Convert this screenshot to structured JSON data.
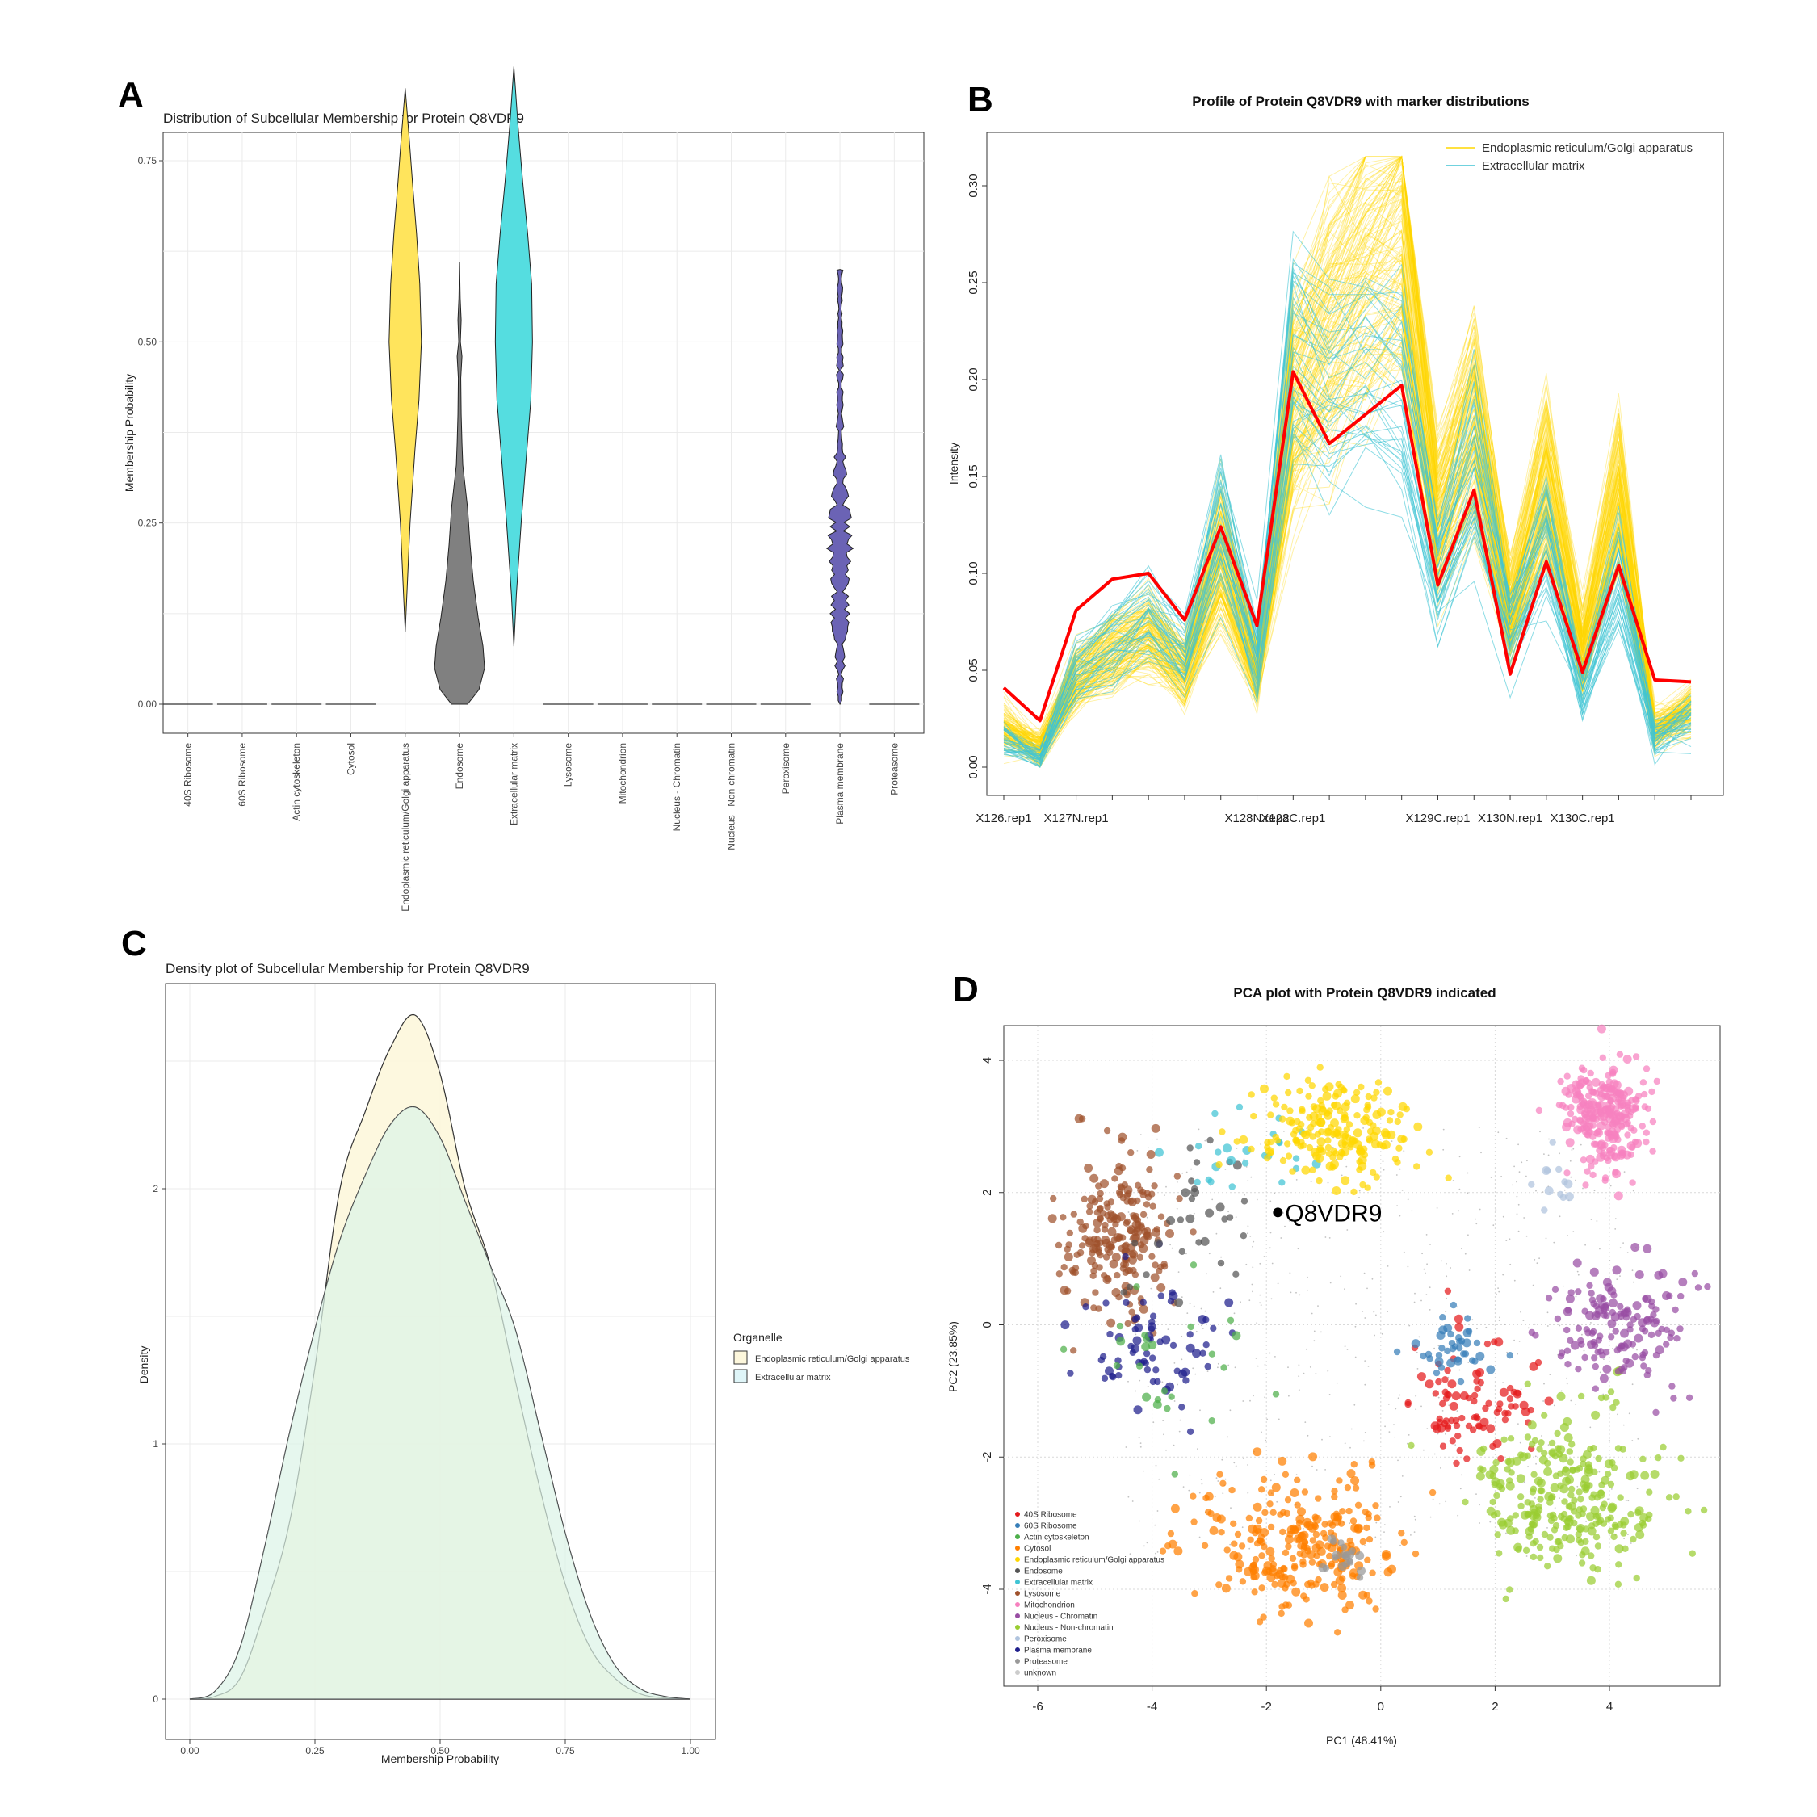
{
  "figure": {
    "letters": [
      "A",
      "B",
      "C",
      "D"
    ]
  },
  "chart_data": [
    {
      "type": "violin",
      "title": "Distribution of Subcellular Membership for Protein Q8VDR9",
      "xlabel": "",
      "ylabel": "Membership Probability",
      "ylim": [
        0,
        0.88
      ],
      "yticks": [
        "0.00",
        "0.25",
        "0.50",
        "0.75"
      ],
      "categories": [
        "40S Ribosome",
        "60S Ribosome",
        "Actin cytoskeleton",
        "Cytosol",
        "Endoplasmic reticulum/Golgi apparatus",
        "Endosome",
        "Extracellular matrix",
        "Lysosome",
        "Mitochondrion",
        "Nucleus - Chromatin",
        "Nucleus - Non-chromatin",
        "Peroxisome",
        "Plasma membrane",
        "Proteasome"
      ],
      "series": [
        {
          "category": "Endoplasmic reticulum/Golgi apparatus",
          "color": "#ffe45c",
          "min": 0.1,
          "max": 0.85,
          "mode": 0.5
        },
        {
          "category": "Endosome",
          "color": "#808080",
          "min": 0.0,
          "max": 0.61,
          "mode": 0.05
        },
        {
          "category": "Extracellular matrix",
          "color": "#55dde0",
          "min": 0.08,
          "max": 0.88,
          "mode": 0.5
        },
        {
          "category": "Plasma membrane",
          "color": "#6b63b5",
          "min": 0.0,
          "max": 0.6,
          "mode": 0.2
        }
      ],
      "grid": true
    },
    {
      "type": "line",
      "title": "Profile of Protein Q8VDR9 with marker distributions",
      "xlabel": "",
      "ylabel": "Intensity",
      "ylim": [
        0,
        0.32
      ],
      "yticks": [
        "0.00",
        "0.05",
        "0.10",
        "0.15",
        "0.20",
        "0.25",
        "0.30"
      ],
      "x": [
        "X126.rep1",
        "X126.rep2",
        "X127N.rep1",
        "X127N.rep2",
        "X127C.rep1",
        "X127C.rep2",
        "X128N.rep1",
        "X128N.rep2",
        "X128C.rep1",
        "X128C.rep2",
        "X129N.rep1",
        "X129N.rep2",
        "X129C.rep1",
        "X129C.rep2",
        "X130N.rep1",
        "X130N.rep2",
        "X130C.rep1",
        "X130C.rep2",
        "X131.rep1",
        "X131.rep2"
      ],
      "x_labels_shown": [
        "X126.rep1",
        "X127N.rep1",
        "X128N.rep2",
        "X128C.rep1",
        "X129C.rep1",
        "X130N.rep1",
        "X130C.rep1"
      ],
      "protein": {
        "name": "Q8VDR9",
        "color": "#ff0000",
        "values": [
          0.041,
          0.024,
          0.081,
          0.097,
          0.1,
          0.076,
          0.124,
          0.073,
          0.204,
          0.167,
          0.182,
          0.197,
          0.094,
          0.143,
          0.048,
          0.106,
          0.049,
          0.104,
          0.045,
          0.044
        ]
      },
      "series": [
        {
          "name": "Endoplasmic reticulum/Golgi apparatus",
          "color": "#ffd700",
          "mean": [
            0.02,
            0.01,
            0.045,
            0.06,
            0.07,
            0.05,
            0.11,
            0.05,
            0.19,
            0.23,
            0.26,
            0.28,
            0.13,
            0.18,
            0.08,
            0.15,
            0.06,
            0.14,
            0.02,
            0.03
          ]
        },
        {
          "name": "Extracellular matrix",
          "color": "#40c4d4",
          "mean": [
            0.015,
            0.005,
            0.05,
            0.065,
            0.08,
            0.06,
            0.13,
            0.06,
            0.22,
            0.2,
            0.21,
            0.2,
            0.1,
            0.16,
            0.07,
            0.12,
            0.04,
            0.1,
            0.015,
            0.025
          ]
        }
      ],
      "legend": "top-right"
    },
    {
      "type": "area",
      "title": "Density plot of Subcellular Membership for Protein Q8VDR9",
      "xlabel": "Membership Probability",
      "ylabel": "Density",
      "xlim": [
        0,
        1
      ],
      "ylim": [
        0,
        2.7
      ],
      "xticks": [
        "0.00",
        "0.25",
        "0.50",
        "0.75",
        "1.00"
      ],
      "yticks": [
        "0",
        "1",
        "2"
      ],
      "legend_title": "Organelle",
      "series": [
        {
          "name": "Endoplasmic reticulum/Golgi apparatus",
          "fill": "#fdf7dc",
          "x": [
            0.0,
            0.05,
            0.1,
            0.15,
            0.2,
            0.25,
            0.3,
            0.35,
            0.4,
            0.45,
            0.5,
            0.55,
            0.6,
            0.65,
            0.7,
            0.75,
            0.8,
            0.85,
            0.9,
            0.95,
            1.0
          ],
          "y": [
            0.0,
            0.01,
            0.08,
            0.35,
            0.7,
            1.3,
            2.0,
            2.3,
            2.55,
            2.68,
            2.45,
            2.0,
            1.7,
            1.25,
            0.82,
            0.45,
            0.2,
            0.08,
            0.02,
            0.005,
            0.0
          ]
        },
        {
          "name": "Extracellular matrix",
          "fill": "#dff5f8",
          "x": [
            0.0,
            0.05,
            0.1,
            0.15,
            0.2,
            0.25,
            0.3,
            0.35,
            0.4,
            0.45,
            0.5,
            0.55,
            0.6,
            0.65,
            0.7,
            0.75,
            0.8,
            0.85,
            0.9,
            0.95,
            1.0
          ],
          "y": [
            0.0,
            0.03,
            0.2,
            0.6,
            1.05,
            1.45,
            1.8,
            2.05,
            2.25,
            2.32,
            2.2,
            1.95,
            1.7,
            1.45,
            1.05,
            0.65,
            0.33,
            0.13,
            0.04,
            0.01,
            0.0
          ]
        }
      ],
      "grid": true
    },
    {
      "type": "scatter",
      "title": "PCA plot with Protein Q8VDR9 indicated",
      "xlabel": "PC1 (48.41%)",
      "ylabel": "PC2 (23.85%)",
      "xlim": [
        -6.6,
        5.8
      ],
      "ylim": [
        -5.6,
        4.5
      ],
      "xticks": [
        "-6",
        "-4",
        "-2",
        "0",
        "2",
        "4"
      ],
      "yticks": [
        "-4",
        "-2",
        "0",
        "2",
        "4"
      ],
      "annotation": {
        "label": "Q8VDR9",
        "x": -1.8,
        "y": 1.7
      },
      "series": [
        {
          "name": "40S Ribosome",
          "color": "#e41a1c",
          "cx": 1.6,
          "cy": -1.3,
          "sx": 0.6,
          "sy": 0.5,
          "n": 90
        },
        {
          "name": "60S Ribosome",
          "color": "#377eb8",
          "cx": 1.3,
          "cy": -0.3,
          "sx": 0.3,
          "sy": 0.25,
          "n": 40
        },
        {
          "name": "Actin cytoskeleton",
          "color": "#4daf4a",
          "cx": -3.5,
          "cy": -0.6,
          "sx": 0.7,
          "sy": 0.6,
          "n": 25
        },
        {
          "name": "Cytosol",
          "color": "#ff7f00",
          "cx": -1.5,
          "cy": -3.3,
          "sx": 0.8,
          "sy": 0.55,
          "n": 260
        },
        {
          "name": "Endoplasmic reticulum/Golgi apparatus",
          "color": "#ffd700",
          "cx": -0.8,
          "cy": 2.9,
          "sx": 0.7,
          "sy": 0.35,
          "n": 200
        },
        {
          "name": "Endosome",
          "color": "#555555",
          "cx": -3.2,
          "cy": 1.6,
          "sx": 0.6,
          "sy": 0.6,
          "n": 30
        },
        {
          "name": "Extracellular matrix",
          "color": "#40c4d4",
          "cx": -2.2,
          "cy": 2.5,
          "sx": 0.6,
          "sy": 0.4,
          "n": 25
        },
        {
          "name": "Lysosome",
          "color": "#a0522d",
          "cx": -4.6,
          "cy": 1.3,
          "sx": 0.5,
          "sy": 0.6,
          "n": 220
        },
        {
          "name": "Mitochondrion",
          "color": "#f781bf",
          "cx": 3.9,
          "cy": 3.2,
          "sx": 0.35,
          "sy": 0.4,
          "n": 260
        },
        {
          "name": "Nucleus - Chromatin",
          "color": "#984ea3",
          "cx": 4.2,
          "cy": 0.0,
          "sx": 0.6,
          "sy": 0.5,
          "n": 150
        },
        {
          "name": "Nucleus - Non-chromatin",
          "color": "#9acd32",
          "cx": 3.3,
          "cy": -2.6,
          "sx": 0.8,
          "sy": 0.6,
          "n": 280
        },
        {
          "name": "Peroxisome",
          "color": "#b0c4de",
          "cx": 3.0,
          "cy": 2.2,
          "sx": 0.3,
          "sy": 0.3,
          "n": 12
        },
        {
          "name": "Plasma membrane",
          "color": "#1f1f8c",
          "cx": -4.0,
          "cy": -0.3,
          "sx": 0.6,
          "sy": 0.5,
          "n": 70
        },
        {
          "name": "Proteasome",
          "color": "#999999",
          "cx": -0.6,
          "cy": -3.5,
          "sx": 0.25,
          "sy": 0.2,
          "n": 20
        },
        {
          "name": "unknown",
          "color": "#cccccc",
          "cx": 0.0,
          "cy": -0.5,
          "sx": 2.2,
          "sy": 1.5,
          "n": 600
        }
      ],
      "legend": "bottom-left"
    }
  ]
}
